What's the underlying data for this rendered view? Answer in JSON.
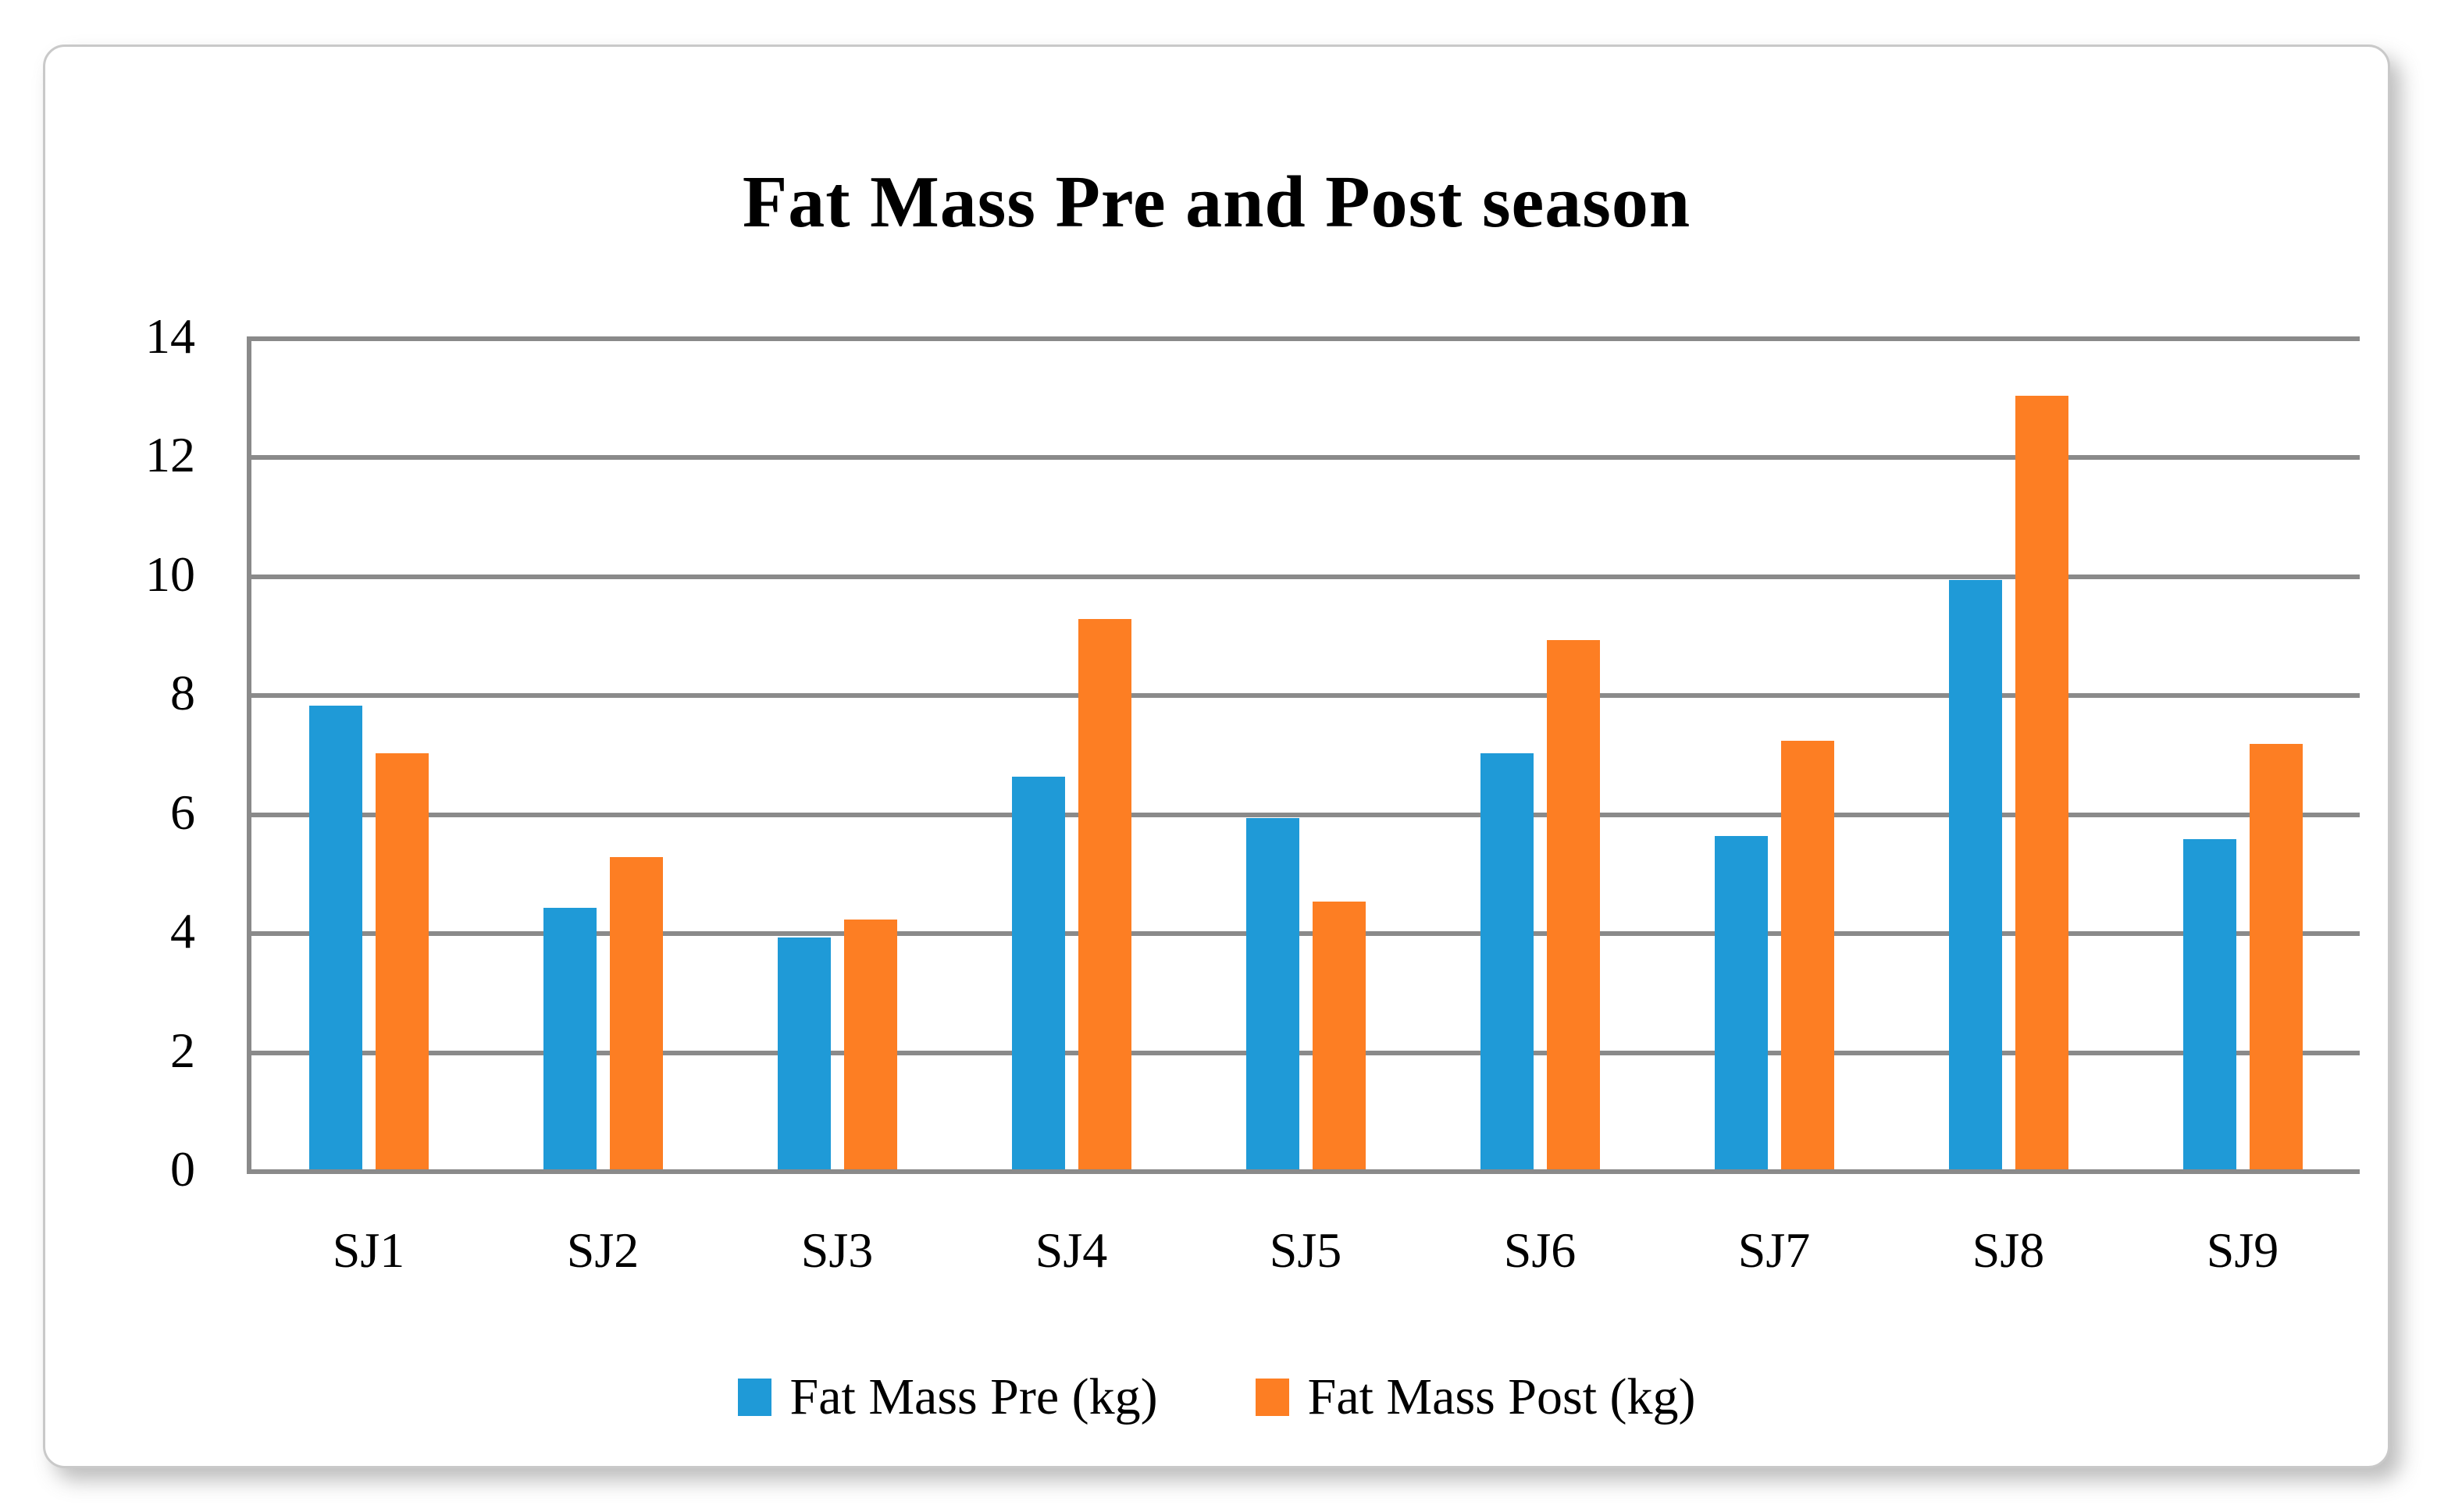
{
  "title": "Fat Mass Pre and Post season",
  "colors": {
    "pre": "#1f9ad7",
    "post": "#fd7e23",
    "gridline": "#8a8a8a",
    "text": "#000000",
    "card_border": "#c9c9c9"
  },
  "chart_data": {
    "type": "bar",
    "title": "Fat Mass Pre and Post season",
    "categories": [
      "SJ1",
      "SJ2",
      "SJ3",
      "SJ4",
      "SJ5",
      "SJ6",
      "SJ7",
      "SJ8",
      "SJ9"
    ],
    "series": [
      {
        "name": "Fat Mass Pre (kg)",
        "color": "#1f9ad7",
        "values": [
          7.8,
          4.4,
          3.9,
          6.6,
          5.9,
          7.0,
          5.6,
          9.9,
          5.55
        ]
      },
      {
        "name": "Fat Mass Post (kg)",
        "color": "#fd7e23",
        "values": [
          7.0,
          5.25,
          4.2,
          9.25,
          4.5,
          8.9,
          7.2,
          13.0,
          7.15
        ]
      }
    ],
    "xlabel": "",
    "ylabel": "",
    "ylim": [
      0,
      14
    ],
    "yticks": [
      0,
      2,
      4,
      6,
      8,
      10,
      12,
      14
    ],
    "grid": true,
    "legend_position": "bottom"
  }
}
